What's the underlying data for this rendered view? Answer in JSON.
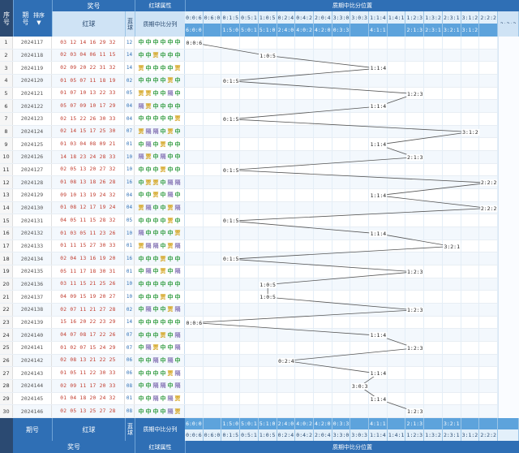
{
  "header": {
    "seq_label": "序号",
    "issue_label": "期号",
    "sort_label": "排序",
    "prize_label": "奖号",
    "red_label": "红球",
    "blue_label": "蓝球",
    "attr_group_label": "红球属性",
    "attr_sub_label": "质期中比分列",
    "dist_group_label": "质期中比分位置",
    "dist_sub_label": "质期中比分布",
    "ratios_row1": [
      "0:0:6",
      "0:6:0",
      "0:1:5",
      "0:5:1",
      "1:0:5",
      "0:2:4",
      "0:4:2",
      "2:0:4",
      "3:3:0",
      "3:0:3",
      "1:1:4",
      "1:4:1",
      "1:2:3",
      "1:3:2",
      "2:3:1",
      "3:1:2",
      "2:2:2"
    ],
    "ratios_row2": [
      "6:0:0",
      "",
      "1:5:0",
      "5:0:1",
      "5:1:0",
      "2:4:0",
      "4:0:2",
      "4:2:0",
      "0:3:3",
      "",
      "4:1:1",
      "",
      "2:1:3",
      "2:3:1",
      "3:2:1",
      "3:1:2",
      ""
    ]
  },
  "footer": {
    "issue_label": "期号",
    "red_label": "红球",
    "blue_label": "蓝球",
    "attr_label": "质期中比分列",
    "prize_label": "奖号",
    "attr_group_label": "红球属性",
    "dist_group_label": "质期中比分位置",
    "ratios_row1": [
      "6:0:0",
      "",
      "1:5:0",
      "5:0:1",
      "5:1:0",
      "2:4:0",
      "4:0:2",
      "4:2:0",
      "0:3:3",
      "",
      "4:1:1",
      "",
      "2:1:3",
      "",
      "3:2:1",
      "",
      ""
    ],
    "ratios_row2": [
      "0:0:6",
      "0:6:0",
      "0:1:5",
      "0:5:1",
      "1:0:5",
      "0:2:4",
      "0:4:2",
      "2:0:4",
      "3:3:0",
      "3:0:3",
      "1:1:4",
      "1:4:1",
      "1:2:3",
      "1:3:2",
      "2:3:1",
      "3:1:2",
      "2:2:2"
    ]
  },
  "rows": [
    {
      "seq": "1",
      "issue": "2024117",
      "red": "03 12 14 16 29 32",
      "blue": "12",
      "attr": [
        "中",
        "中",
        "中",
        "中",
        "中",
        "中"
      ],
      "ratio": "0:0:6",
      "col": 0
    },
    {
      "seq": "2",
      "issue": "2024118",
      "red": "02 03 04 06 11 15",
      "blue": "14",
      "attr": [
        "中",
        "中",
        "贾",
        "中",
        "中",
        "中"
      ],
      "ratio": "1:0:5",
      "col": 4
    },
    {
      "seq": "3",
      "issue": "2024119",
      "red": "02 09 20 22 31 32",
      "blue": "14",
      "attr": [
        "贾",
        "中",
        "中",
        "中",
        "中",
        "贾"
      ],
      "ratio": "1:1:4",
      "col": 10
    },
    {
      "seq": "4",
      "issue": "2024120",
      "red": "01 05 07 11 18 19",
      "blue": "02",
      "attr": [
        "中",
        "中",
        "中",
        "中",
        "贾",
        "中"
      ],
      "ratio": "0:1:5",
      "col": 2
    },
    {
      "seq": "5",
      "issue": "2024121",
      "red": "01 07 10 13 22 33",
      "blue": "05",
      "attr": [
        "贾",
        "贾",
        "中",
        "中",
        "隔",
        "中"
      ],
      "ratio": "1:2:3",
      "col": 12
    },
    {
      "seq": "6",
      "issue": "2024122",
      "red": "05 07 09 10 17 29",
      "blue": "04",
      "attr": [
        "隔",
        "贾",
        "中",
        "中",
        "中",
        "中"
      ],
      "ratio": "1:1:4",
      "col": 10
    },
    {
      "seq": "7",
      "issue": "2024123",
      "red": "02 15 22 26 30 33",
      "blue": "04",
      "attr": [
        "中",
        "中",
        "中",
        "中",
        "中",
        "贾"
      ],
      "ratio": "0:1:5",
      "col": 2
    },
    {
      "seq": "8",
      "issue": "2024124",
      "red": "02 14 15 17 25 30",
      "blue": "07",
      "attr": [
        "贾",
        "隔",
        "隔",
        "中",
        "贾",
        "中"
      ],
      "ratio": "3:1:2",
      "col": 15
    },
    {
      "seq": "9",
      "issue": "2024125",
      "red": "01 03 04 08 09 21",
      "blue": "01",
      "attr": [
        "中",
        "隔",
        "中",
        "贾",
        "中",
        "中"
      ],
      "ratio": "1:1:4",
      "col": 10
    },
    {
      "seq": "10",
      "issue": "2024126",
      "red": "14 18 23 24 28 33",
      "blue": "10",
      "attr": [
        "隔",
        "贾",
        "中",
        "隔",
        "中",
        "中"
      ],
      "ratio": "2:1:3",
      "col": 12
    },
    {
      "seq": "11",
      "issue": "2024127",
      "red": "02 05 13 20 27 32",
      "blue": "10",
      "attr": [
        "中",
        "中",
        "中",
        "贾",
        "中",
        "中"
      ],
      "ratio": "0:1:5",
      "col": 2
    },
    {
      "seq": "12",
      "issue": "2024128",
      "red": "01 08 13 18 26 28",
      "blue": "16",
      "attr": [
        "中",
        "贾",
        "贾",
        "中",
        "隔",
        "隔"
      ],
      "ratio": "2:2:2",
      "col": 16
    },
    {
      "seq": "13",
      "issue": "2024129",
      "red": "09 10 13 19 24 32",
      "blue": "04",
      "attr": [
        "中",
        "中",
        "贾",
        "中",
        "隔",
        "中"
      ],
      "ratio": "1:1:4",
      "col": 10
    },
    {
      "seq": "14",
      "issue": "2024130",
      "red": "01 08 12 17 19 24",
      "blue": "04",
      "attr": [
        "贾",
        "隔",
        "中",
        "中",
        "贾",
        "隔"
      ],
      "ratio": "2:2:2",
      "col": 16
    },
    {
      "seq": "15",
      "issue": "2024131",
      "red": "04 05 11 15 28 32",
      "blue": "05",
      "attr": [
        "中",
        "中",
        "中",
        "中",
        "贾",
        "中"
      ],
      "ratio": "0:1:5",
      "col": 2
    },
    {
      "seq": "16",
      "issue": "2024132",
      "red": "01 03 05 11 23 26",
      "blue": "10",
      "attr": [
        "隔",
        "中",
        "中",
        "中",
        "中",
        "贾"
      ],
      "ratio": "1:1:4",
      "col": 10
    },
    {
      "seq": "17",
      "issue": "2024133",
      "red": "01 11 15 27 30 33",
      "blue": "01",
      "attr": [
        "贾",
        "隔",
        "隔",
        "中",
        "贾",
        "隔"
      ],
      "ratio": "3:2:1",
      "col": 14
    },
    {
      "seq": "18",
      "issue": "2024134",
      "red": "02 04 13 16 19 20",
      "blue": "16",
      "attr": [
        "中",
        "中",
        "中",
        "贾",
        "中",
        "中"
      ],
      "ratio": "0:1:5",
      "col": 2
    },
    {
      "seq": "19",
      "issue": "2024135",
      "red": "05 11 17 18 30 31",
      "blue": "01",
      "attr": [
        "中",
        "隔",
        "中",
        "贾",
        "中",
        "隔"
      ],
      "ratio": "1:2:3",
      "col": 12
    },
    {
      "seq": "20",
      "issue": "2024136",
      "red": "03 11 15 21 25 26",
      "blue": "10",
      "attr": [
        "中",
        "中",
        "中",
        "中",
        "中",
        "中"
      ],
      "ratio": "1:0:5",
      "col": 4
    },
    {
      "seq": "21",
      "issue": "2024137",
      "red": "04 09 15 19 20 27",
      "blue": "10",
      "attr": [
        "中",
        "中",
        "中",
        "贾",
        "中",
        "中"
      ],
      "ratio": "1:0:5",
      "col": 4
    },
    {
      "seq": "22",
      "issue": "2024138",
      "red": "02 07 11 21 27 28",
      "blue": "02",
      "attr": [
        "中",
        "隔",
        "中",
        "中",
        "贾",
        "隔"
      ],
      "ratio": "1:2:3",
      "col": 12
    },
    {
      "seq": "23",
      "issue": "2024139",
      "red": "15 16 20 22 23 29",
      "blue": "14",
      "attr": [
        "中",
        "中",
        "中",
        "中",
        "中",
        "中"
      ],
      "ratio": "0:0:6",
      "col": 0
    },
    {
      "seq": "24",
      "issue": "2024140",
      "red": "04 07 08 17 22 26",
      "blue": "07",
      "attr": [
        "中",
        "中",
        "中",
        "贾",
        "中",
        "隔"
      ],
      "ratio": "1:1:4",
      "col": 10
    },
    {
      "seq": "25",
      "issue": "2024141",
      "red": "01 02 07 15 24 29",
      "blue": "07",
      "attr": [
        "中",
        "隔",
        "贾",
        "中",
        "中",
        "隔"
      ],
      "ratio": "1:2:3",
      "col": 12
    },
    {
      "seq": "26",
      "issue": "2024142",
      "red": "02 08 13 21 22 25",
      "blue": "06",
      "attr": [
        "中",
        "中",
        "隔",
        "中",
        "隔",
        "中"
      ],
      "ratio": "0:2:4",
      "col": 5
    },
    {
      "seq": "27",
      "issue": "2024143",
      "red": "01 05 11 22 30 33",
      "blue": "06",
      "attr": [
        "中",
        "中",
        "中",
        "中",
        "贾",
        "隔"
      ],
      "ratio": "1:1:4",
      "col": 10
    },
    {
      "seq": "28",
      "issue": "2024144",
      "red": "02 09 11 17 20 33",
      "blue": "08",
      "attr": [
        "中",
        "中",
        "隔",
        "隔",
        "中",
        "隔"
      ],
      "ratio": "3:0:3",
      "col": 9
    },
    {
      "seq": "29",
      "issue": "2024145",
      "red": "01 04 18 20 24 32",
      "blue": "01",
      "attr": [
        "中",
        "中",
        "隔",
        "中",
        "隔",
        "贾"
      ],
      "ratio": "1:1:4",
      "col": 10
    },
    {
      "seq": "30",
      "issue": "2024146",
      "red": "02 05 13 25 27 28",
      "blue": "08",
      "attr": [
        "中",
        "中",
        "中",
        "中",
        "隔",
        "贾"
      ],
      "ratio": "1:2:3",
      "col": 12
    }
  ]
}
